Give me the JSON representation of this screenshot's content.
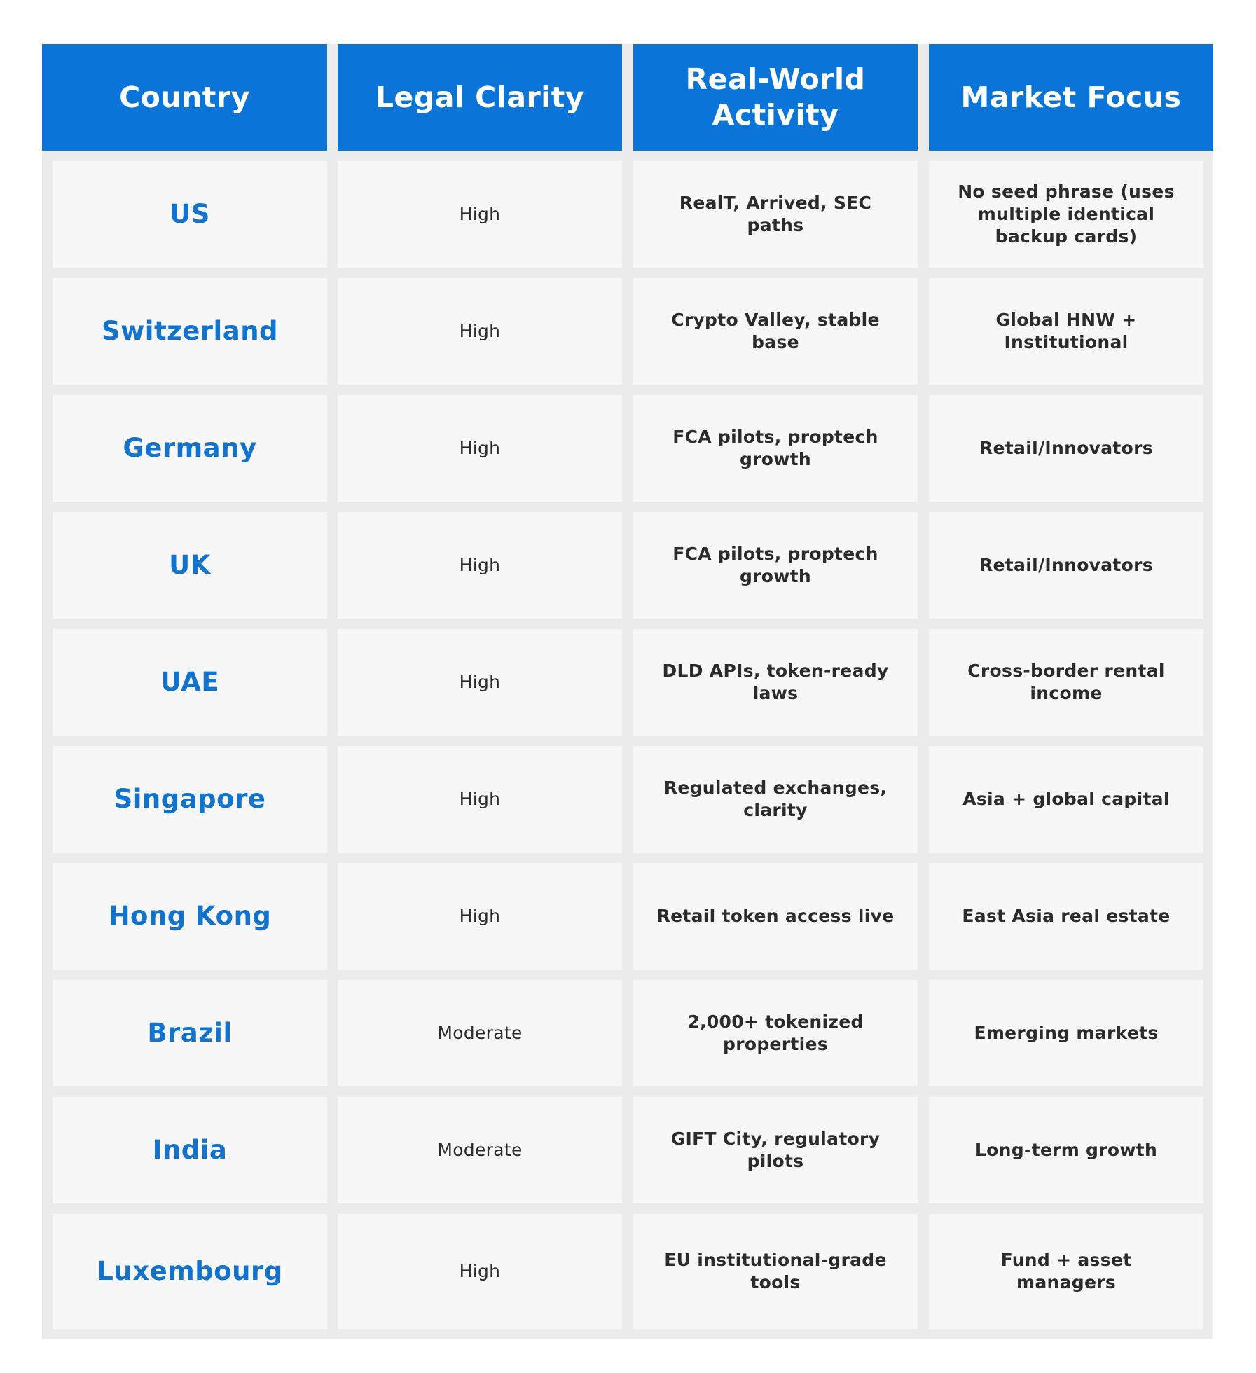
{
  "table": {
    "headers": [
      "Country",
      "Legal Clarity",
      "Real-World Activity",
      "Market Focus"
    ],
    "rows": [
      {
        "country": "US",
        "clarity": "High",
        "activity": "RealT, Arrived, SEC paths",
        "focus": "No seed phrase (uses multiple identical backup cards)"
      },
      {
        "country": "Switzerland",
        "clarity": "High",
        "activity": "Crypto Valley, stable base",
        "focus": "Global HNW + Institutional"
      },
      {
        "country": "Germany",
        "clarity": "High",
        "activity": "FCA pilots, proptech growth",
        "focus": "Retail/Innovators"
      },
      {
        "country": "UK",
        "clarity": "High",
        "activity": "FCA pilots, proptech growth",
        "focus": "Retail/Innovators"
      },
      {
        "country": "UAE",
        "clarity": "High",
        "activity": "DLD APIs, token-ready laws",
        "focus": "Cross-border rental income"
      },
      {
        "country": "Singapore",
        "clarity": "High",
        "activity": "Regulated exchanges, clarity",
        "focus": "Asia + global capital"
      },
      {
        "country": "Hong Kong",
        "clarity": "High",
        "activity": "Retail token access live",
        "focus": "East Asia real estate"
      },
      {
        "country": "Brazil",
        "clarity": "Moderate",
        "activity": "2,000+ tokenized properties",
        "focus": "Emerging markets"
      },
      {
        "country": "India",
        "clarity": "Moderate",
        "activity": "GIFT City, regulatory pilots",
        "focus": "Long-term growth"
      },
      {
        "country": "Luxembourg",
        "clarity": "High",
        "activity": "EU institutional-grade tools",
        "focus": "Fund + asset managers"
      }
    ]
  },
  "colors": {
    "header_bg": "#0a74d8",
    "header_text": "#ffffff",
    "country_text": "#1273cf",
    "cell_bg": "#f7f7f7",
    "grid_bg": "#ebebeb",
    "body_text": "#2b2b2b"
  }
}
